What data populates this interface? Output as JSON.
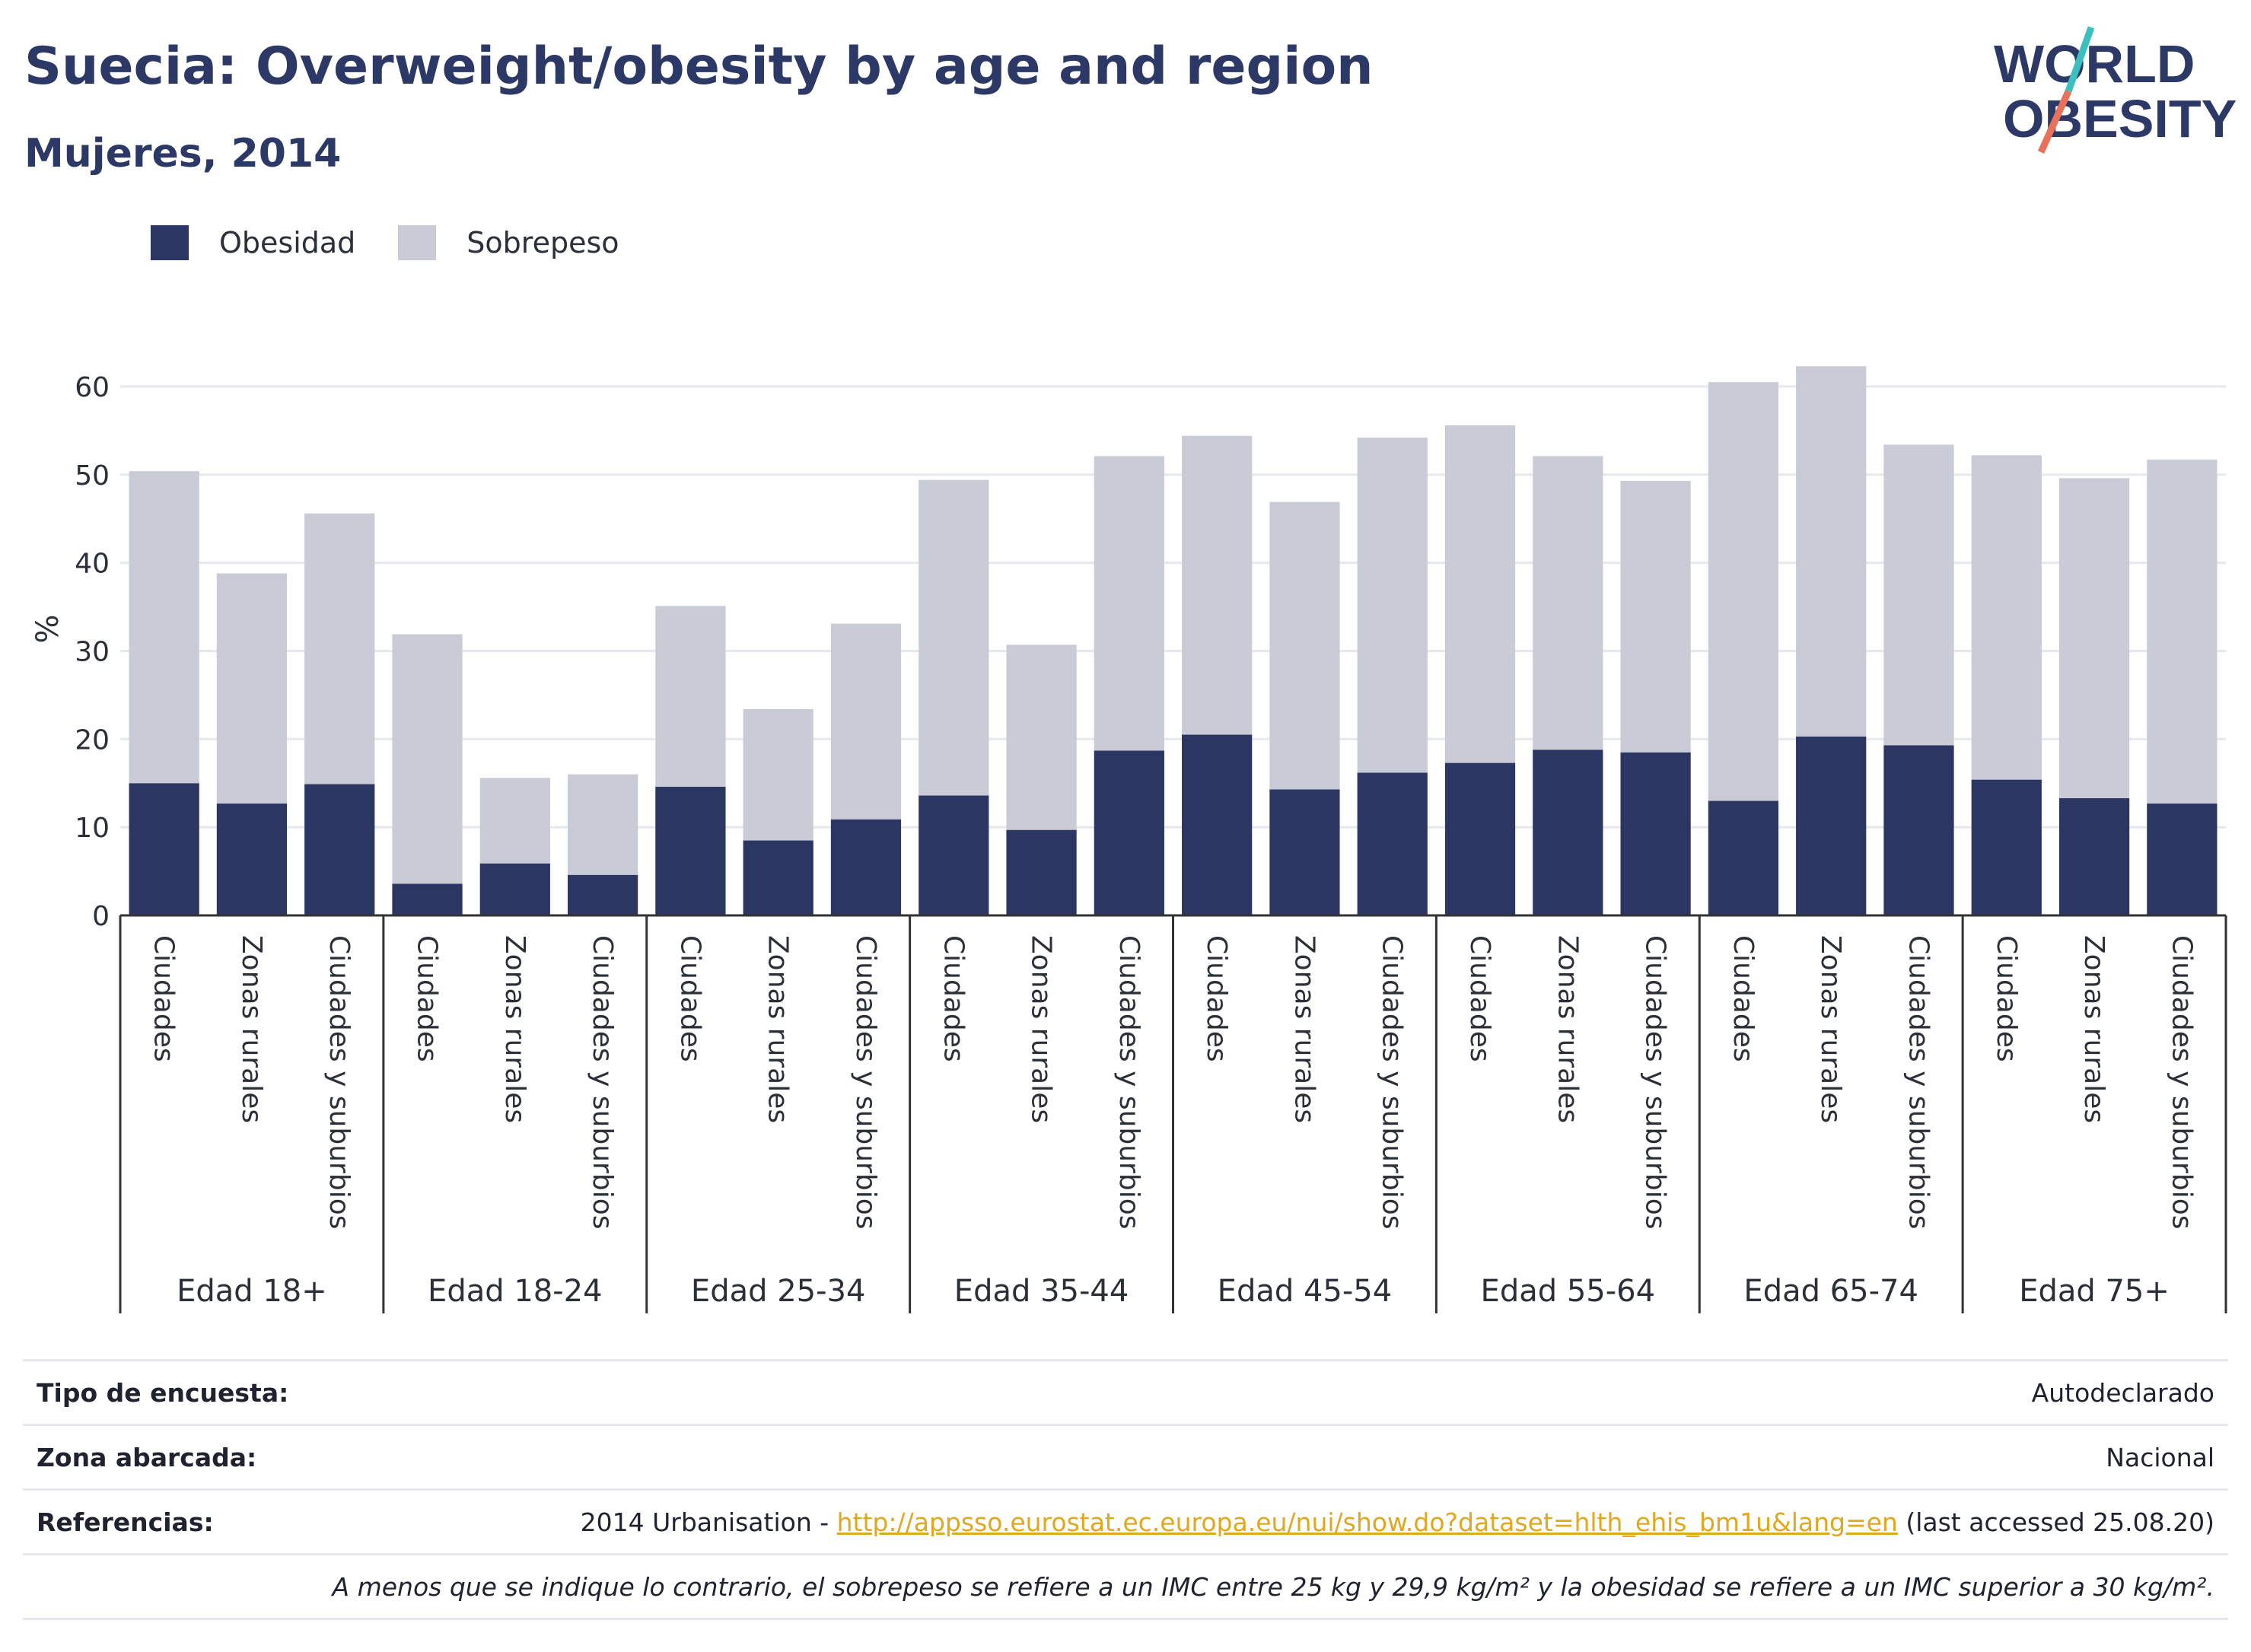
{
  "header": {
    "title": "Suecia: Overweight/obesity by age and region",
    "subtitle": "Mujeres, 2014"
  },
  "logo": {
    "line1": "WORLD",
    "line2": "OBESITY",
    "colors": [
      "#2c3866",
      "#3bbfbf",
      "#e8715c"
    ]
  },
  "legend": [
    {
      "label": "Obesidad",
      "color": "#2b3663"
    },
    {
      "label": "Sobrepeso",
      "color": "#c9cbd6"
    }
  ],
  "chart_data": {
    "type": "bar",
    "stacked": true,
    "ylabel": "%",
    "ylim": [
      0,
      65
    ],
    "yticks": [
      0,
      10,
      20,
      30,
      40,
      50,
      60
    ],
    "grid": true,
    "legend_position": "top-left",
    "groups": [
      {
        "label": "Edad 18+",
        "categories": [
          "Ciudades",
          "Zonas rurales",
          "Ciudades y suburbios"
        ]
      },
      {
        "label": "Edad 18-24",
        "categories": [
          "Ciudades",
          "Zonas rurales",
          "Ciudades y suburbios"
        ]
      },
      {
        "label": "Edad 25-34",
        "categories": [
          "Ciudades",
          "Zonas rurales",
          "Ciudades y suburbios"
        ]
      },
      {
        "label": "Edad 35-44",
        "categories": [
          "Ciudades",
          "Zonas rurales",
          "Ciudades y suburbios"
        ]
      },
      {
        "label": "Edad 45-54",
        "categories": [
          "Ciudades",
          "Zonas rurales",
          "Ciudades y suburbios"
        ]
      },
      {
        "label": "Edad 55-64",
        "categories": [
          "Ciudades",
          "Zonas rurales",
          "Ciudades y suburbios"
        ]
      },
      {
        "label": "Edad 65-74",
        "categories": [
          "Ciudades",
          "Zonas rurales",
          "Ciudades y suburbios"
        ]
      },
      {
        "label": "Edad 75+",
        "categories": [
          "Ciudades",
          "Zonas rurales",
          "Ciudades y suburbios"
        ]
      }
    ],
    "series": [
      {
        "name": "Obesidad",
        "color": "#2b3663",
        "values": [
          15.0,
          12.7,
          14.9,
          3.6,
          5.9,
          4.6,
          14.6,
          8.5,
          10.9,
          13.6,
          9.7,
          18.7,
          20.5,
          14.3,
          16.2,
          17.3,
          18.8,
          18.5,
          13.0,
          20.3,
          19.3,
          15.4,
          13.3,
          12.7
        ]
      },
      {
        "name": "Sobrepeso",
        "color": "#c9cbd6",
        "values": [
          35.4,
          26.1,
          30.7,
          28.3,
          9.7,
          11.4,
          20.5,
          14.9,
          22.2,
          35.8,
          21.0,
          33.4,
          33.9,
          32.6,
          38.0,
          38.3,
          33.3,
          30.8,
          47.5,
          42.0,
          34.1,
          36.8,
          36.3,
          39.0
        ]
      }
    ]
  },
  "info": {
    "survey_label": "Tipo de encuesta:",
    "survey_value": "Autodeclarado",
    "area_label": "Zona abarcada:",
    "area_value": "Nacional",
    "refs_label": "Referencias:",
    "refs_prefix": "2014 Urbanisation - ",
    "refs_link": "http://appsso.eurostat.ec.europa.eu/nui/show.do?dataset=hlth_ehis_bm1u&lang=en",
    "refs_suffix": " (last accessed 25.08.20)",
    "note": "A menos que se indique lo contrario, el sobrepeso se refiere a un IMC entre 25 kg y 29,9 kg/m² y la obesidad se refiere a un IMC superior a 30 kg/m²."
  }
}
